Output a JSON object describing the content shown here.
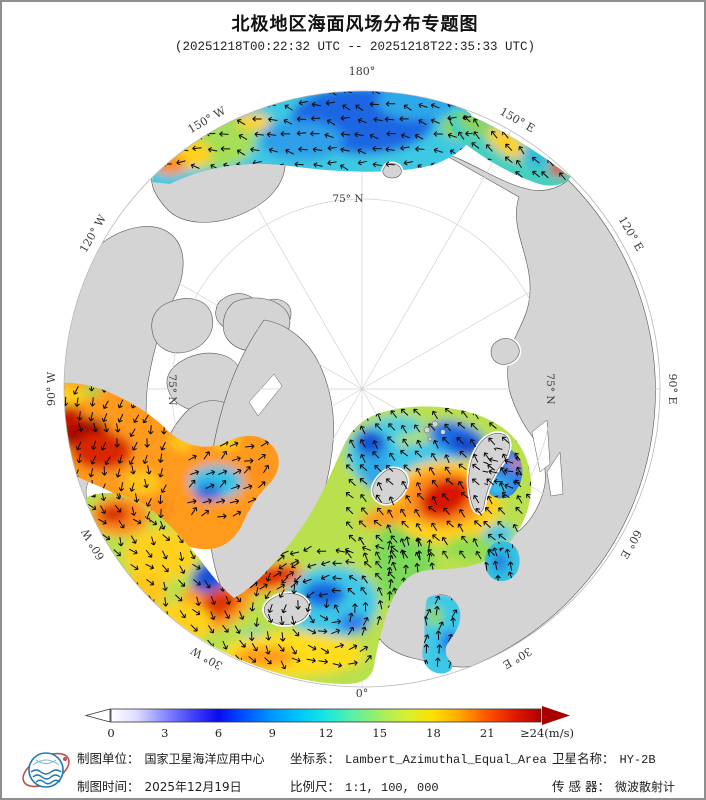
{
  "header": {
    "title": "北极地区海面风场分布专题图",
    "subtitle": "(20251218T00:22:32 UTC -- 20251218T22:35:33 UTC)"
  },
  "map": {
    "meridian_labels": [
      {
        "text": "180°",
        "deg": 0
      },
      {
        "text": "150° E",
        "deg": 30
      },
      {
        "text": "120° E",
        "deg": 60
      },
      {
        "text": "90° E",
        "deg": 90
      },
      {
        "text": "60° E",
        "deg": 120
      },
      {
        "text": "30° E",
        "deg": 150
      },
      {
        "text": "0°",
        "deg": 180
      },
      {
        "text": "30° W",
        "deg": 210
      },
      {
        "text": "60° W",
        "deg": 240
      },
      {
        "text": "90° W",
        "deg": 270
      },
      {
        "text": "120° W",
        "deg": 300
      },
      {
        "text": "150° W",
        "deg": 330
      }
    ],
    "parallel_labels": [
      {
        "text": "75° N",
        "pos": "top"
      },
      {
        "text": "75° N",
        "pos": "right"
      },
      {
        "text": "75° N",
        "pos": "left"
      }
    ]
  },
  "colorbar": {
    "tick_labels": [
      "0",
      "3",
      "6",
      "9",
      "12",
      "15",
      "18",
      "21"
    ],
    "max_label": "≥24(m/s)",
    "gradient": [
      [
        "0",
        "#ffffff"
      ],
      [
        "0.06",
        "#dcdcff"
      ],
      [
        "0.125",
        "#8a8aff"
      ],
      [
        "0.19",
        "#4242f8"
      ],
      [
        "0.25",
        "#0a0af0"
      ],
      [
        "0.3",
        "#0048ff"
      ],
      [
        "0.375",
        "#0098ff"
      ],
      [
        "0.44",
        "#00c8f8"
      ],
      [
        "0.5",
        "#18e8e0"
      ],
      [
        "0.56",
        "#58f0a8"
      ],
      [
        "0.625",
        "#a0f060"
      ],
      [
        "0.69",
        "#d8f030"
      ],
      [
        "0.75",
        "#ffe000"
      ],
      [
        "0.81",
        "#ffa800"
      ],
      [
        "0.875",
        "#ff5400"
      ],
      [
        "0.94",
        "#e01800"
      ],
      [
        "1",
        "#b00000"
      ]
    ],
    "arrow_right_color": "#a80000"
  },
  "footer": {
    "items": [
      {
        "label": "制图单位：",
        "value": "国家卫星海洋应用中心"
      },
      {
        "label": "坐标系：",
        "value": "Lambert_Azimuthal_Equal_Area"
      },
      {
        "label": "卫星名称：",
        "value": "HY-2B"
      },
      {
        "label": "制图时间：",
        "value": "2025年12月19日"
      },
      {
        "label": "比例尺：",
        "value": "1:1, 100, 000"
      },
      {
        "label": "传 感 器：",
        "value": "微波散射计"
      }
    ]
  },
  "palette": {
    "land": "#d4d4d4",
    "coast": "#565656",
    "ice": "#ffffff",
    "graticule": "#d2d2d2",
    "map_edge": "#b8b8b8",
    "label": "#3a3a3a",
    "arrow": "#0a0a0a"
  }
}
